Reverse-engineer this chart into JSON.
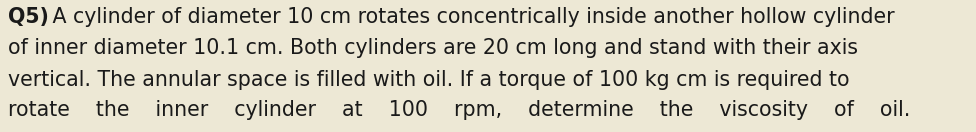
{
  "background_color": "#ede8d5",
  "text_color": "#1a1a1a",
  "bold_prefix": "Q5)",
  "line1": " A cylinder of diameter 10 cm rotates concentrically inside another hollow cylinder",
  "line2": "of inner diameter 10.1 cm. Both cylinders are 20 cm long and stand with their axis",
  "line3": "vertical. The annular space is filled with oil. If a torque of 100 kg cm is required to",
  "line4": "rotate    the    inner    cylinder    at    100    rpm,    determine    the    viscosity    of    oil.",
  "font_size": 14.8,
  "bold_font_size": 14.8,
  "fig_width": 9.76,
  "fig_height": 1.32,
  "dpi": 100
}
